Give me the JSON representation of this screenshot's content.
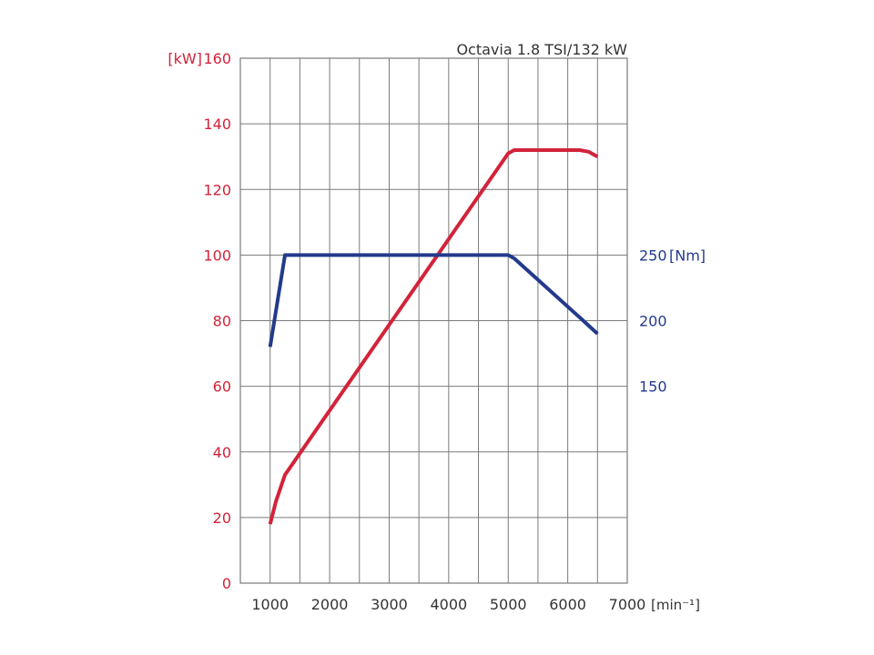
{
  "chart_data": {
    "type": "line",
    "title": "Octavia 1.8 TSI/132 kW",
    "xlabel": "[min⁻¹]",
    "ylabel": "[kW]",
    "y2label": "[Nm]",
    "xlim": [
      500,
      7000
    ],
    "ylim": [
      0,
      160
    ],
    "x_ticks": [
      1000,
      2000,
      3000,
      4000,
      5000,
      6000,
      7000
    ],
    "y_ticks": [
      0,
      20,
      40,
      60,
      80,
      100,
      120,
      140,
      160
    ],
    "y2_ticks": [
      {
        "label": "250",
        "at": 100
      },
      {
        "label": "200",
        "at": 80
      },
      {
        "label": "150",
        "at": 60
      }
    ],
    "grid": true,
    "series": [
      {
        "name": "",
        "axis": "left",
        "color": "#d2233a",
        "points": [
          [
            1000,
            18
          ],
          [
            1100,
            25
          ],
          [
            1250,
            33
          ],
          [
            5000,
            131
          ],
          [
            5100,
            132
          ],
          [
            6200,
            132
          ],
          [
            6350,
            131.5
          ],
          [
            6500,
            130
          ]
        ]
      },
      {
        "name": "",
        "axis": "right",
        "color": "#233a8c",
        "points": [
          [
            1000,
            72
          ],
          [
            1250,
            100
          ],
          [
            5000,
            100
          ],
          [
            5100,
            99
          ],
          [
            6200,
            81
          ],
          [
            6500,
            76
          ]
        ]
      }
    ]
  }
}
